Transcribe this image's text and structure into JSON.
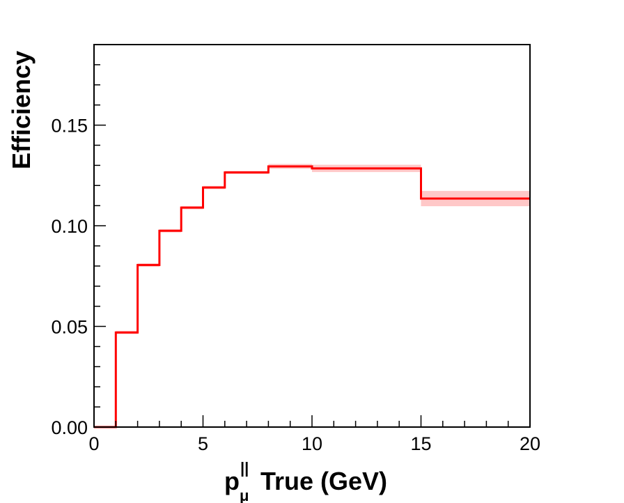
{
  "chart_data": {
    "type": "line",
    "ylabel": "Efficiency",
    "xlabel": {
      "base": "p",
      "subscript": "μ",
      "superscript": "||",
      "rest": "True (GeV)"
    },
    "xlim": [
      0,
      20
    ],
    "ylim": [
      0,
      0.19
    ],
    "x_ticks": [
      0,
      5,
      10,
      15,
      20
    ],
    "x_tick_labels": [
      "0",
      "5",
      "10",
      "15",
      "20"
    ],
    "y_ticks": [
      0.0,
      0.05,
      0.1,
      0.15
    ],
    "y_tick_labels": [
      "0.00",
      "0.05",
      "0.10",
      "0.15"
    ],
    "grid": false,
    "series": [
      {
        "line_color": "#ff0000",
        "band_color": "#ffc8c8",
        "bins": [
          {
            "x_low": 0,
            "x_high": 1,
            "value": 0.0,
            "error": 0.0
          },
          {
            "x_low": 1,
            "x_high": 2,
            "value": 0.047,
            "error": 0.0008
          },
          {
            "x_low": 2,
            "x_high": 3,
            "value": 0.0805,
            "error": 0.0008
          },
          {
            "x_low": 3,
            "x_high": 4,
            "value": 0.0975,
            "error": 0.0008
          },
          {
            "x_low": 4,
            "x_high": 5,
            "value": 0.109,
            "error": 0.0008
          },
          {
            "x_low": 5,
            "x_high": 6,
            "value": 0.119,
            "error": 0.0008
          },
          {
            "x_low": 6,
            "x_high": 8,
            "value": 0.1265,
            "error": 0.0008
          },
          {
            "x_low": 8,
            "x_high": 10,
            "value": 0.1295,
            "error": 0.0012
          },
          {
            "x_low": 10,
            "x_high": 15,
            "value": 0.1285,
            "error": 0.0018
          },
          {
            "x_low": 15,
            "x_high": 20,
            "value": 0.1135,
            "error": 0.0038
          }
        ]
      }
    ]
  }
}
